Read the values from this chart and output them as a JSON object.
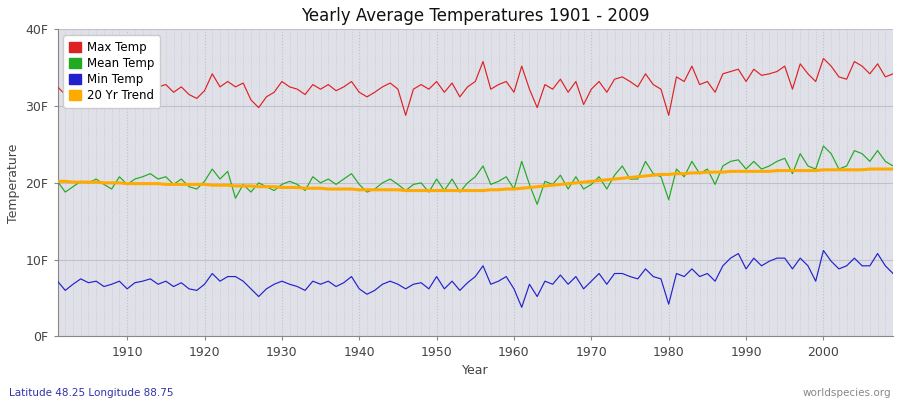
{
  "title": "Yearly Average Temperatures 1901 - 2009",
  "xlabel": "Year",
  "ylabel": "Temperature",
  "lat_label": "Latitude 48.25 Longitude 88.75",
  "watermark": "worldspecies.org",
  "year_start": 1901,
  "year_end": 2009,
  "yticks": [
    0,
    10,
    20,
    30,
    40
  ],
  "ytick_labels": [
    "0F",
    "10F",
    "20F",
    "30F",
    "40F"
  ],
  "background_color": "#e0e0e8",
  "figure_color": "#ffffff",
  "grid_color": "#c0c0cc",
  "max_temp_color": "#dd2222",
  "mean_temp_color": "#22aa22",
  "min_temp_color": "#2222cc",
  "trend_color": "#ffaa00",
  "legend_labels": [
    "Max Temp",
    "Mean Temp",
    "Min Temp",
    "20 Yr Trend"
  ],
  "max_temps": [
    32.5,
    31.5,
    31.8,
    32.2,
    32.0,
    31.6,
    31.2,
    31.8,
    32.5,
    31.5,
    32.8,
    32.0,
    33.2,
    32.5,
    32.8,
    31.8,
    32.5,
    31.5,
    31.0,
    32.0,
    34.2,
    32.5,
    33.2,
    32.5,
    33.0,
    30.8,
    29.8,
    31.2,
    31.8,
    33.2,
    32.5,
    32.2,
    31.5,
    32.8,
    32.2,
    32.8,
    32.0,
    32.5,
    33.2,
    31.8,
    31.2,
    31.8,
    32.5,
    33.0,
    32.2,
    28.8,
    32.2,
    32.8,
    32.2,
    33.2,
    31.8,
    33.0,
    31.2,
    32.5,
    33.2,
    35.8,
    32.2,
    32.8,
    33.2,
    31.8,
    35.2,
    32.2,
    29.8,
    32.8,
    32.2,
    33.5,
    31.8,
    33.2,
    30.2,
    32.2,
    33.2,
    31.8,
    33.5,
    33.8,
    33.2,
    32.5,
    34.2,
    32.8,
    32.2,
    28.8,
    33.8,
    33.2,
    35.2,
    32.8,
    33.2,
    31.8,
    34.2,
    34.5,
    34.8,
    33.2,
    34.8,
    34.0,
    34.2,
    34.5,
    35.2,
    32.2,
    35.5,
    34.2,
    33.2,
    36.2,
    35.2,
    33.8,
    33.5,
    35.8,
    35.2,
    34.2,
    35.5,
    33.8,
    34.2
  ],
  "mean_temps": [
    20.2,
    18.8,
    19.5,
    20.2,
    20.0,
    20.5,
    19.8,
    19.2,
    20.8,
    19.8,
    20.5,
    20.8,
    21.2,
    20.5,
    20.8,
    19.8,
    20.5,
    19.5,
    19.2,
    20.2,
    21.8,
    20.5,
    21.5,
    18.0,
    19.8,
    18.8,
    20.0,
    19.5,
    19.0,
    19.8,
    20.2,
    19.8,
    19.0,
    20.8,
    20.0,
    20.5,
    19.8,
    20.5,
    21.2,
    19.8,
    18.8,
    19.2,
    20.0,
    20.5,
    19.8,
    19.0,
    19.8,
    20.0,
    18.8,
    20.5,
    19.0,
    20.5,
    18.8,
    20.0,
    20.8,
    22.2,
    19.8,
    20.2,
    20.8,
    19.2,
    22.8,
    19.8,
    17.2,
    20.2,
    19.8,
    21.0,
    19.2,
    20.8,
    19.2,
    19.8,
    20.8,
    19.2,
    21.0,
    22.2,
    20.5,
    20.5,
    22.8,
    21.2,
    20.8,
    17.8,
    21.8,
    20.8,
    22.8,
    21.2,
    21.8,
    19.8,
    22.2,
    22.8,
    23.0,
    21.8,
    22.8,
    21.8,
    22.2,
    22.8,
    23.2,
    21.2,
    23.8,
    22.2,
    21.8,
    24.8,
    23.8,
    21.8,
    22.2,
    24.2,
    23.8,
    22.8,
    24.2,
    22.8,
    22.2
  ],
  "min_temps": [
    7.2,
    6.0,
    6.8,
    7.5,
    7.0,
    7.2,
    6.5,
    6.8,
    7.2,
    6.2,
    7.0,
    7.2,
    7.5,
    6.8,
    7.2,
    6.5,
    7.0,
    6.2,
    6.0,
    6.8,
    8.2,
    7.2,
    7.8,
    7.8,
    7.2,
    6.2,
    5.2,
    6.2,
    6.8,
    7.2,
    6.8,
    6.5,
    6.0,
    7.2,
    6.8,
    7.2,
    6.5,
    7.0,
    7.8,
    6.2,
    5.5,
    6.0,
    6.8,
    7.2,
    6.8,
    6.2,
    6.8,
    7.0,
    6.2,
    7.8,
    6.2,
    7.2,
    6.0,
    7.0,
    7.8,
    9.2,
    6.8,
    7.2,
    7.8,
    6.2,
    3.8,
    6.8,
    5.2,
    7.2,
    6.8,
    8.0,
    6.8,
    7.8,
    6.2,
    7.2,
    8.2,
    6.8,
    8.2,
    8.2,
    7.8,
    7.5,
    8.8,
    7.8,
    7.5,
    4.2,
    8.2,
    7.8,
    8.8,
    7.8,
    8.2,
    7.2,
    9.2,
    10.2,
    10.8,
    8.8,
    10.2,
    9.2,
    9.8,
    10.2,
    10.2,
    8.8,
    10.2,
    9.2,
    7.2,
    11.2,
    9.8,
    8.8,
    9.2,
    10.2,
    9.2,
    9.2,
    10.8,
    9.2,
    8.2
  ],
  "trend_values": [
    20.2,
    20.2,
    20.1,
    20.1,
    20.1,
    20.1,
    20.0,
    20.0,
    20.0,
    19.9,
    19.9,
    19.9,
    19.9,
    19.9,
    19.8,
    19.8,
    19.8,
    19.8,
    19.8,
    19.8,
    19.7,
    19.7,
    19.7,
    19.6,
    19.6,
    19.6,
    19.5,
    19.5,
    19.5,
    19.4,
    19.4,
    19.4,
    19.3,
    19.3,
    19.3,
    19.2,
    19.2,
    19.2,
    19.2,
    19.1,
    19.1,
    19.1,
    19.1,
    19.1,
    19.1,
    19.0,
    19.0,
    19.0,
    19.0,
    19.0,
    19.0,
    19.0,
    19.0,
    19.0,
    19.0,
    19.0,
    19.1,
    19.1,
    19.2,
    19.2,
    19.3,
    19.4,
    19.5,
    19.6,
    19.7,
    19.8,
    19.9,
    20.0,
    20.1,
    20.2,
    20.3,
    20.4,
    20.5,
    20.6,
    20.7,
    20.8,
    20.9,
    21.0,
    21.1,
    21.1,
    21.2,
    21.2,
    21.3,
    21.3,
    21.4,
    21.4,
    21.4,
    21.5,
    21.5,
    21.5,
    21.5,
    21.5,
    21.5,
    21.6,
    21.6,
    21.6,
    21.6,
    21.6,
    21.6,
    21.7,
    21.7,
    21.7,
    21.7,
    21.7,
    21.7,
    21.8,
    21.8,
    21.8,
    21.8
  ]
}
